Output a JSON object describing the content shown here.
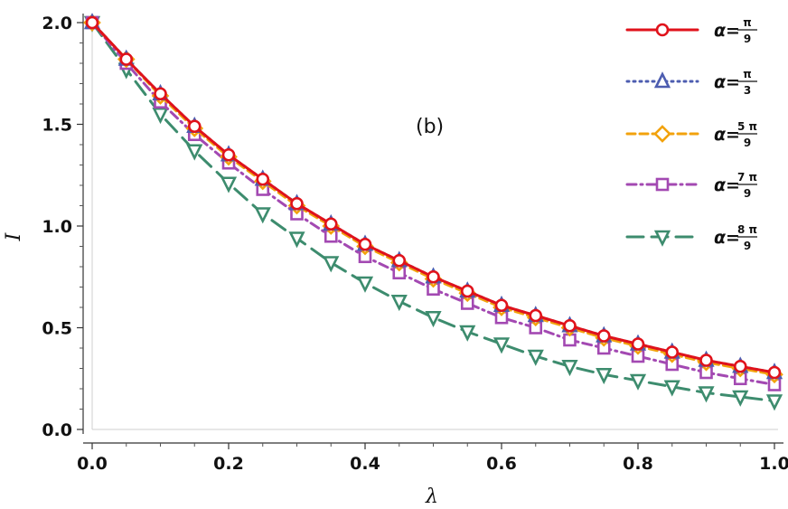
{
  "chart_data": {
    "type": "line",
    "title": "",
    "annotation": "(b)",
    "xlabel": "λ",
    "ylabel": "I",
    "xlim": [
      0,
      1
    ],
    "ylim": [
      0,
      2
    ],
    "xticks": [
      "0.0",
      "0.2",
      "0.4",
      "0.6",
      "0.8",
      "1.0"
    ],
    "yticks": [
      "0.0",
      "0.5",
      "1.0",
      "1.5",
      "2.0"
    ],
    "legend_position": "top-right",
    "x": [
      0,
      0.05,
      0.1,
      0.15,
      0.2,
      0.25,
      0.3,
      0.35,
      0.4,
      0.45,
      0.5,
      0.55,
      0.6,
      0.65,
      0.7,
      0.75,
      0.8,
      0.85,
      0.9,
      0.95,
      1.0
    ],
    "series": [
      {
        "name": "α=π/9",
        "alpha_label": "α=",
        "frac_num": "π",
        "frac_den": "9",
        "color": "#e0121b",
        "marker": "circle",
        "dash": "solid",
        "values": [
          2.0,
          1.82,
          1.65,
          1.49,
          1.35,
          1.23,
          1.11,
          1.01,
          0.91,
          0.83,
          0.75,
          0.68,
          0.61,
          0.56,
          0.51,
          0.46,
          0.42,
          0.38,
          0.34,
          0.31,
          0.28
        ]
      },
      {
        "name": "α=π/3",
        "alpha_label": "α=",
        "frac_num": "π",
        "frac_den": "3",
        "color": "#4d5db0",
        "marker": "triangle-up",
        "dash": "dotted",
        "values": [
          2.0,
          1.82,
          1.65,
          1.49,
          1.35,
          1.23,
          1.11,
          1.01,
          0.91,
          0.83,
          0.75,
          0.68,
          0.61,
          0.56,
          0.51,
          0.46,
          0.42,
          0.38,
          0.34,
          0.31,
          0.28
        ]
      },
      {
        "name": "α=5π/9",
        "alpha_label": "α=",
        "frac_num": "5 π",
        "frac_den": "9",
        "color": "#f2a20c",
        "marker": "diamond",
        "dash": "dashed",
        "values": [
          2.0,
          1.82,
          1.64,
          1.48,
          1.34,
          1.22,
          1.1,
          1.0,
          0.9,
          0.82,
          0.74,
          0.67,
          0.6,
          0.55,
          0.5,
          0.45,
          0.41,
          0.37,
          0.33,
          0.3,
          0.27
        ]
      },
      {
        "name": "α=7π/9",
        "alpha_label": "α=",
        "frac_num": "7 π",
        "frac_den": "9",
        "color": "#a349b2",
        "marker": "square",
        "dash": "dashdot",
        "values": [
          2.0,
          1.8,
          1.61,
          1.45,
          1.31,
          1.18,
          1.06,
          0.95,
          0.85,
          0.77,
          0.69,
          0.62,
          0.55,
          0.5,
          0.44,
          0.4,
          0.36,
          0.32,
          0.28,
          0.25,
          0.22
        ]
      },
      {
        "name": "α=8π/9",
        "alpha_label": "α=",
        "frac_num": "8 π",
        "frac_den": "9",
        "color": "#3d8c6e",
        "marker": "triangle-down",
        "dash": "longdash",
        "values": [
          2.0,
          1.77,
          1.55,
          1.37,
          1.21,
          1.06,
          0.94,
          0.82,
          0.72,
          0.63,
          0.55,
          0.48,
          0.42,
          0.36,
          0.31,
          0.27,
          0.24,
          0.21,
          0.18,
          0.16,
          0.14
        ]
      }
    ]
  }
}
